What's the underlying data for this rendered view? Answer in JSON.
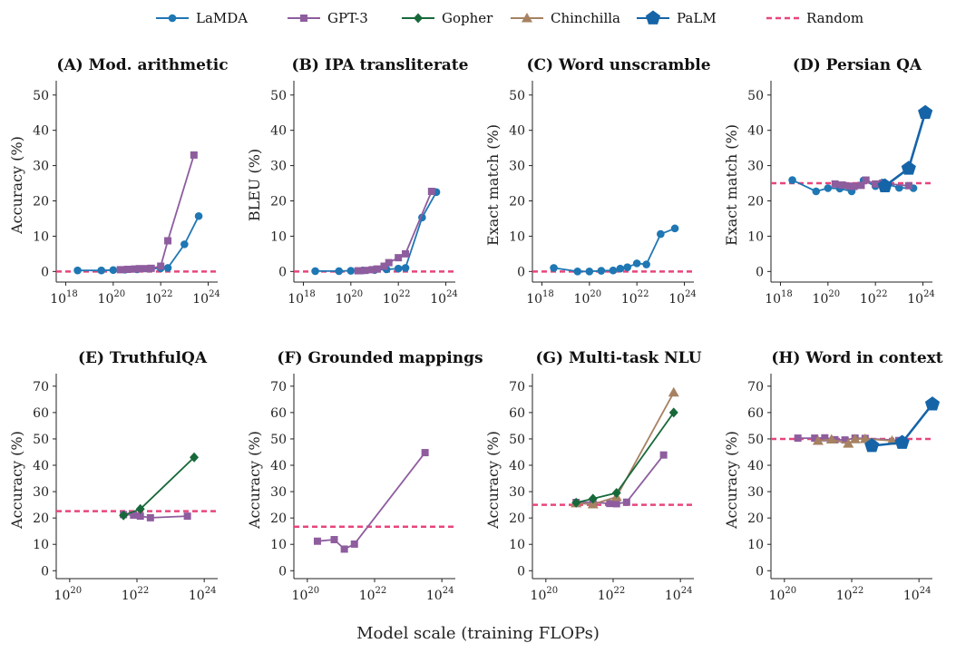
{
  "figure": {
    "xlabel": "Model scale (training FLOPs)"
  },
  "colors": {
    "LaMDA": "#1f77b4",
    "GPT-3": "#8e5d9e",
    "Gopher": "#17693a",
    "Chinchilla": "#a68262",
    "PaLM": "#1564a8",
    "Random": "#e8457c"
  },
  "legend": [
    {
      "name": "LaMDA",
      "marker": "circle"
    },
    {
      "name": "GPT-3",
      "marker": "square"
    },
    {
      "name": "Gopher",
      "marker": "diamond"
    },
    {
      "name": "Chinchilla",
      "marker": "triangle"
    },
    {
      "name": "PaLM",
      "marker": "pentagon"
    },
    {
      "name": "Random",
      "marker": "dash"
    }
  ],
  "chart_data": [
    {
      "type": "line",
      "title": "(A) Mod. arithmetic",
      "ylabel": "Accuracy (%)",
      "xscale": "log",
      "xlim_exp": [
        17.6,
        24.4
      ],
      "xticks_exp": [
        18,
        20,
        22,
        24
      ],
      "ylim": [
        -3,
        52
      ],
      "yticks": [
        0,
        10,
        20,
        30,
        40,
        50
      ],
      "random": 0,
      "series": [
        {
          "name": "LaMDA",
          "x_exp": [
            18.5,
            19.5,
            20.0,
            20.5,
            21.0,
            21.5,
            22.0,
            22.3,
            23.0,
            23.6
          ],
          "y": [
            0.3,
            0.3,
            0.4,
            0.5,
            0.6,
            0.8,
            0.9,
            1.0,
            7.7,
            15.7
          ]
        },
        {
          "name": "GPT-3",
          "x_exp": [
            20.3,
            20.6,
            20.9,
            21.1,
            21.4,
            21.6,
            22.0,
            22.3,
            23.4
          ],
          "y": [
            0.5,
            0.6,
            0.7,
            0.8,
            0.8,
            0.9,
            1.5,
            8.7,
            33.0
          ]
        }
      ]
    },
    {
      "type": "line",
      "title": "(B) IPA transliterate",
      "ylabel": "BLEU (%)",
      "xscale": "log",
      "xlim_exp": [
        17.6,
        24.4
      ],
      "xticks_exp": [
        18,
        20,
        22,
        24
      ],
      "ylim": [
        -3,
        52
      ],
      "yticks": [
        0,
        10,
        20,
        30,
        40,
        50
      ],
      "random": 0,
      "series": [
        {
          "name": "LaMDA",
          "x_exp": [
            18.5,
            19.5,
            20.0,
            20.5,
            21.0,
            21.5,
            22.0,
            22.3,
            23.0,
            23.6
          ],
          "y": [
            0.1,
            0.1,
            0.2,
            0.3,
            0.4,
            0.6,
            0.8,
            1.0,
            15.3,
            22.5
          ]
        },
        {
          "name": "GPT-3",
          "x_exp": [
            20.3,
            20.6,
            20.9,
            21.1,
            21.4,
            21.6,
            22.0,
            22.3,
            23.4
          ],
          "y": [
            0.2,
            0.3,
            0.5,
            0.7,
            1.5,
            2.5,
            3.9,
            5.0,
            22.7
          ]
        }
      ]
    },
    {
      "type": "line",
      "title": "(C) Word unscramble",
      "ylabel": "Exact match (%)",
      "xscale": "log",
      "xlim_exp": [
        17.6,
        24.4
      ],
      "xticks_exp": [
        18,
        20,
        22,
        24
      ],
      "ylim": [
        -3,
        52
      ],
      "yticks": [
        0,
        10,
        20,
        30,
        40,
        50
      ],
      "random": 0,
      "series": [
        {
          "name": "LaMDA",
          "x_exp": [
            18.5,
            19.5,
            20.0,
            20.5,
            21.0,
            21.3,
            21.6,
            22.0,
            22.4,
            23.0,
            23.6
          ],
          "y": [
            1.0,
            0.0,
            0.0,
            0.2,
            0.3,
            0.8,
            1.2,
            2.3,
            2.0,
            10.6,
            12.2
          ]
        }
      ]
    },
    {
      "type": "line",
      "title": "(D) Persian QA",
      "ylabel": "Exact match (%)",
      "xscale": "log",
      "xlim_exp": [
        17.6,
        24.4
      ],
      "xticks_exp": [
        18,
        20,
        22,
        24
      ],
      "ylim": [
        -3,
        52
      ],
      "yticks": [
        0,
        10,
        20,
        30,
        40,
        50
      ],
      "random": 25,
      "series": [
        {
          "name": "LaMDA",
          "x_exp": [
            18.5,
            19.5,
            20.0,
            20.5,
            21.0,
            21.5,
            22.0,
            22.3,
            23.0,
            23.6
          ],
          "y": [
            25.9,
            22.7,
            23.6,
            23.5,
            22.7,
            25.8,
            24.2,
            25.2,
            23.7,
            23.6
          ]
        },
        {
          "name": "GPT-3",
          "x_exp": [
            20.3,
            20.6,
            20.9,
            21.1,
            21.4,
            21.6,
            22.0,
            22.3,
            23.4
          ],
          "y": [
            24.8,
            24.5,
            24.2,
            24.1,
            24.4,
            25.9,
            24.8,
            25.0,
            24.3
          ]
        },
        {
          "name": "PaLM",
          "x_exp": [
            22.4,
            23.4,
            24.1
          ],
          "y": [
            24.2,
            29.2,
            45.0
          ]
        }
      ]
    },
    {
      "type": "line",
      "title": "(E) TruthfulQA",
      "ylabel": "Accuracy (%)",
      "xscale": "log",
      "xlim_exp": [
        19.6,
        24.4
      ],
      "xticks_exp": [
        20,
        22,
        24
      ],
      "ylim": [
        -3,
        72
      ],
      "yticks": [
        0,
        10,
        20,
        30,
        40,
        50,
        60,
        70
      ],
      "random": 22.6,
      "series": [
        {
          "name": "GPT-3",
          "x_exp": [
            21.6,
            21.9,
            22.1,
            22.4,
            23.5
          ],
          "y": [
            21.3,
            21.1,
            20.7,
            20.1,
            20.7
          ]
        },
        {
          "name": "Gopher",
          "x_exp": [
            21.6,
            22.1,
            23.7
          ],
          "y": [
            21.0,
            23.4,
            43.0
          ]
        }
      ]
    },
    {
      "type": "line",
      "title": "(F) Grounded mappings",
      "ylabel": "Accuracy (%)",
      "xscale": "log",
      "xlim_exp": [
        19.6,
        24.4
      ],
      "xticks_exp": [
        20,
        22,
        24
      ],
      "ylim": [
        -3,
        72
      ],
      "yticks": [
        0,
        10,
        20,
        30,
        40,
        50,
        60,
        70
      ],
      "random": 16.7,
      "series": [
        {
          "name": "GPT-3",
          "x_exp": [
            20.3,
            20.8,
            21.1,
            21.4,
            23.5
          ],
          "y": [
            11.2,
            11.8,
            8.2,
            10.1,
            44.8
          ]
        }
      ]
    },
    {
      "type": "line",
      "title": "(G) Multi-task NLU",
      "ylabel": "Accuracy (%)",
      "xscale": "log",
      "xlim_exp": [
        19.6,
        24.4
      ],
      "xticks_exp": [
        20,
        22,
        24
      ],
      "ylim": [
        -3,
        72
      ],
      "yticks": [
        0,
        10,
        20,
        30,
        40,
        50,
        60,
        70
      ],
      "random": 25,
      "series": [
        {
          "name": "GPT-3",
          "x_exp": [
            20.9,
            21.4,
            21.9,
            22.1,
            22.4,
            23.5
          ],
          "y": [
            25.9,
            26.0,
            25.5,
            25.4,
            26.0,
            43.9
          ]
        },
        {
          "name": "Chinchilla",
          "x_exp": [
            20.9,
            21.4,
            22.1,
            23.8
          ],
          "y": [
            25.6,
            25.2,
            28.0,
            67.6
          ]
        },
        {
          "name": "Gopher",
          "x_exp": [
            20.9,
            21.4,
            22.1,
            23.8
          ],
          "y": [
            25.8,
            27.3,
            29.5,
            60.0
          ]
        }
      ]
    },
    {
      "type": "line",
      "title": "(H) Word in context",
      "ylabel": "Accuracy (%)",
      "xscale": "log",
      "xlim_exp": [
        19.6,
        24.4
      ],
      "xticks_exp": [
        20,
        22,
        24
      ],
      "ylim": [
        -3,
        72
      ],
      "yticks": [
        0,
        10,
        20,
        30,
        40,
        50,
        60,
        70
      ],
      "random": 50,
      "series": [
        {
          "name": "GPT-3",
          "x_exp": [
            20.4,
            20.9,
            21.2,
            21.5,
            21.8,
            22.1,
            22.4,
            23.4
          ],
          "y": [
            50.3,
            50.3,
            50.4,
            49.7,
            49.6,
            50.3,
            50.2,
            49.4
          ]
        },
        {
          "name": "Chinchilla",
          "x_exp": [
            21.0,
            21.4,
            21.9,
            22.1,
            22.4,
            23.2
          ],
          "y": [
            49.3,
            49.8,
            48.2,
            49.9,
            50.0,
            49.3
          ]
        },
        {
          "name": "PaLM",
          "x_exp": [
            22.6,
            23.5,
            24.4
          ],
          "y": [
            47.4,
            48.6,
            63.2
          ]
        }
      ]
    }
  ]
}
